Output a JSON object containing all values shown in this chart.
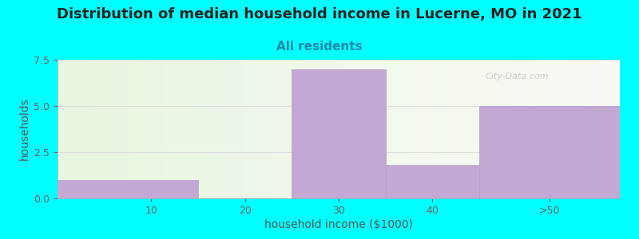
{
  "title": "Distribution of median household income in Lucerne, MO in 2021",
  "subtitle": "All residents",
  "xlabel": "household income ($1000)",
  "ylabel": "households",
  "background_color": "#00FFFF",
  "bar_color": "#c4a8d4",
  "bar_edge_color": "#b898cc",
  "values": [
    1.0,
    0.0,
    7.0,
    1.8,
    5.0
  ],
  "bar_lefts": [
    0,
    15,
    25,
    35,
    45
  ],
  "bar_widths": [
    15,
    10,
    10,
    10,
    15
  ],
  "xlim": [
    0,
    60
  ],
  "ylim": [
    0,
    7.5
  ],
  "yticks": [
    0,
    2.5,
    5,
    7.5
  ],
  "xtick_positions": [
    10,
    20,
    30,
    40,
    52.5
  ],
  "xtick_labels": [
    "10",
    "20",
    "30",
    "40",
    ">50"
  ],
  "title_fontsize": 13,
  "subtitle_fontsize": 11,
  "axis_label_fontsize": 10,
  "tick_fontsize": 9,
  "title_color": "#222222",
  "subtitle_color": "#2288aa",
  "axis_label_color": "#555555",
  "tick_color": "#666666",
  "watermark_text": "City-Data.com",
  "grid_color": "#dddddd",
  "gradient_color_left": "#e8f5e0",
  "gradient_color_right": "#f8fbf5"
}
